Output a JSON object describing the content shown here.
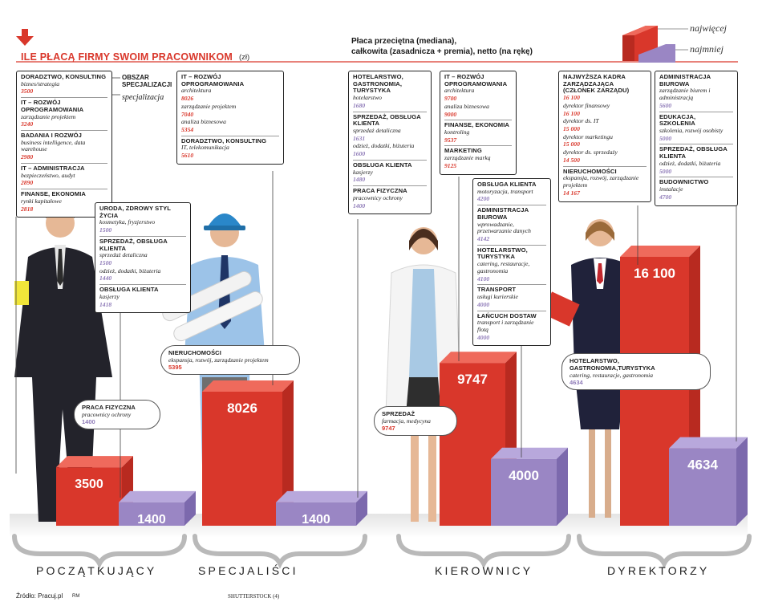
{
  "header": {
    "title": "ILE PŁACĄ FIRMY SWOIM PRACOWNIKOM",
    "unit": "(zł)",
    "subtitle_line1": "Płaca przeciętna (mediana),",
    "subtitle_line2": "całkowita (zasadnicza + premia), netto (na rękę)",
    "legend_high": "najwięcej",
    "legend_low": "najmniej",
    "key_area": "OBSZAR SPECJALIZACJI",
    "key_spec": "specjalizacja"
  },
  "colors": {
    "high": "#d9372b",
    "low": "#9a86c4",
    "title": "#d9372b"
  },
  "icons": [
    "down-arrow-icon"
  ],
  "footer": {
    "source": "Źródło: Pracuj.pl",
    "author": "RM",
    "photo": "SHUTTERSTOCK (4)"
  },
  "chart_data": {
    "type": "bar",
    "categories": [
      "POCZĄTKUJĄCY",
      "SPECJALIŚCI",
      "KIEROWNICY",
      "DYREKTORZY"
    ],
    "series": [
      {
        "name": "najwięcej",
        "values": [
          3500,
          8026,
          9747,
          16100
        ]
      },
      {
        "name": "najmniej",
        "values": [
          1400,
          1400,
          4000,
          4634
        ]
      }
    ],
    "ylim": [
      0,
      16100
    ],
    "callouts": [
      {
        "cat": "PRACA FIZYCZNA",
        "sub": "pracownicy ochrony",
        "val": "1400",
        "tone": "low"
      },
      {
        "cat": "NIERUCHOMOŚCI",
        "sub": "ekspansja, rozwój, zarządzanie projektem",
        "val": "5395",
        "tone": "high"
      },
      {
        "cat": "SPRZEDAŻ",
        "sub": "farmacja, medycyna",
        "val": "9747",
        "tone": "high"
      },
      {
        "cat": "HOTELARSTWO, GASTRONOMIA,TURYSTYKA",
        "sub": "catering, restauracje, gastronomia",
        "val": "4634",
        "tone": "low"
      }
    ]
  },
  "boxes": {
    "pocz_high": [
      {
        "cat": "DORADZTWO, KONSULTING",
        "subs": [
          {
            "sub": "biznes/strategia",
            "val": "3500"
          }
        ]
      },
      {
        "cat": "IT – ROZWÓJ OPROGRAMOWANIA",
        "subs": [
          {
            "sub": "zarządzanie projektem",
            "val": "3240"
          }
        ]
      },
      {
        "cat": "BADANIA I ROZWÓJ",
        "subs": [
          {
            "sub": "business intelligence, data warehouse",
            "val": "2980"
          }
        ]
      },
      {
        "cat": "IT – ADMINISTRACJA",
        "subs": [
          {
            "sub": "bezpieczeństwo, audyt",
            "val": "2890"
          }
        ]
      },
      {
        "cat": "FINANSE, EKONOMIA",
        "subs": [
          {
            "sub": "rynki kapitałowe",
            "val": "2818"
          }
        ]
      }
    ],
    "pocz_low": [
      {
        "cat": "URODA, ZDROWY STYL ŻYCIA",
        "subs": [
          {
            "sub": "kosmetyka, fryzjerstwo",
            "val": "1500"
          }
        ]
      },
      {
        "cat": "SPRZEDAŻ, OBSŁUGA KLIENTA",
        "subs": [
          {
            "sub": "sprzedaż detaliczna",
            "val": "1500"
          },
          {
            "sub": "odzież, dodatki, biżuteria",
            "val": "1440"
          }
        ]
      },
      {
        "cat": "OBSŁUGA KLIENTA",
        "subs": [
          {
            "sub": "kasjerzy",
            "val": "1418"
          }
        ]
      }
    ],
    "spec_high": [
      {
        "cat": "IT – ROZWÓJ OPROGRAMOWANIA",
        "subs": [
          {
            "sub": "architektura",
            "val": "8026"
          },
          {
            "sub": "zarządzanie projektem",
            "val": "7040"
          },
          {
            "sub": "analiza biznesowa",
            "val": "5354"
          }
        ]
      },
      {
        "cat": "DORADZTWO, KONSULTING",
        "subs": [
          {
            "sub": "IT, telekomunikacja",
            "val": "5610"
          }
        ]
      }
    ],
    "spec_low": [
      {
        "cat": "HOTELARSTWO, GASTRONOMIA, TURYSTYKA",
        "subs": [
          {
            "sub": "hotelarstwo",
            "val": "1680"
          }
        ]
      },
      {
        "cat": "SPRZEDAŻ, OBSŁUGA KLIENTA",
        "subs": [
          {
            "sub": "sprzedaż detaliczna",
            "val": "1631"
          },
          {
            "sub": "odzież, dodatki, biżuteria",
            "val": "1600"
          }
        ]
      },
      {
        "cat": "OBSŁUGA KLIENTA",
        "subs": [
          {
            "sub": "kasjerzy",
            "val": "1480"
          }
        ]
      },
      {
        "cat": "PRACA FIZYCZNA",
        "subs": [
          {
            "sub": "pracownicy ochrony",
            "val": "1400"
          }
        ]
      }
    ],
    "kier_high": [
      {
        "cat": "IT – ROZWÓJ OPROGRAMOWANIA",
        "subs": [
          {
            "sub": "architektura",
            "val": "9700"
          },
          {
            "sub": "analiza biznesowa",
            "val": "9000"
          }
        ]
      },
      {
        "cat": "FINANSE, EKONOMIA",
        "subs": [
          {
            "sub": "kontroling",
            "val": "9537"
          }
        ]
      },
      {
        "cat": "MARKETING",
        "subs": [
          {
            "sub": "zarządzanie marką",
            "val": "9125"
          }
        ]
      }
    ],
    "kier_low": [
      {
        "cat": "OBSŁUGA KLIENTA",
        "subs": [
          {
            "sub": "motoryzacja, transport",
            "val": "4200"
          }
        ]
      },
      {
        "cat": "ADMINISTRACJA BIUROWA",
        "subs": [
          {
            "sub": "wprowadzanie, przetwarzanie danych",
            "val": "4142"
          }
        ]
      },
      {
        "cat": "HOTELARSTWO, TURYSTYKA",
        "subs": [
          {
            "sub": "catering, restauracje, gastronomia",
            "val": "4100"
          }
        ]
      },
      {
        "cat": "TRANSPORT",
        "subs": [
          {
            "sub": "usługi kurierskie",
            "val": "4000"
          }
        ]
      },
      {
        "cat": "ŁAŃCUCH DOSTAW",
        "subs": [
          {
            "sub": "transport i zarządzanie flotą",
            "val": "4000"
          }
        ]
      }
    ],
    "dyr_high": [
      {
        "cat": "NAJWYŻSZA KADRA ZARZĄDZAJĄCA (CZŁONEK ZARZĄDU)",
        "subs": [
          {
            "sub": "",
            "val": "16 100"
          },
          {
            "sub": "dyrektor finansowy",
            "val": "16 100"
          },
          {
            "sub": "dyrektor ds. IT",
            "val": "15 000"
          },
          {
            "sub": "dyrektor marketingu",
            "val": "15 000"
          },
          {
            "sub": "dyrektor ds. sprzedaży",
            "val": "14 500"
          }
        ]
      },
      {
        "cat": "NIERUCHOMOŚCI",
        "subs": [
          {
            "sub": "ekspansja, rozwój, zarządzanie projektem",
            "val": "14 167"
          }
        ]
      }
    ],
    "dyr_low": [
      {
        "cat": "ADMINISTRACJA BIUROWA",
        "subs": [
          {
            "sub": "zarządzanie biurem i administracją",
            "val": "5600"
          }
        ]
      },
      {
        "cat": "EDUKACJA, SZKOLENIA",
        "subs": [
          {
            "sub": "szkolenia, rozwój osobisty",
            "val": "5000"
          }
        ]
      },
      {
        "cat": "SPRZEDAŻ, OBSŁUGA KLIENTA",
        "subs": [
          {
            "sub": "odzież, dodatki, biżuteria",
            "val": "5000"
          }
        ]
      },
      {
        "cat": "BUDOWNICTWO",
        "subs": [
          {
            "sub": "instalacje",
            "val": "4700"
          }
        ]
      }
    ]
  }
}
